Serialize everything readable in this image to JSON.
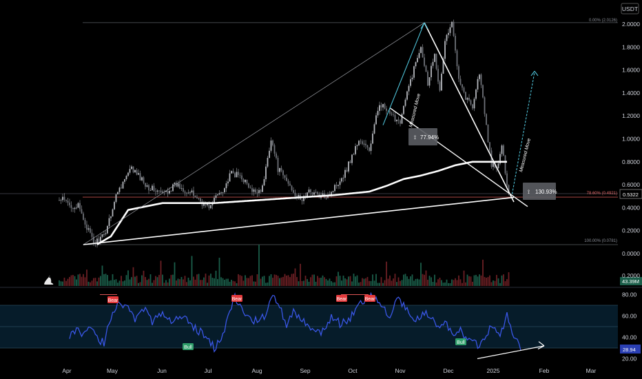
{
  "currency": "USDT",
  "chart_data": [
    {
      "type": "line",
      "subtype": "candlestick",
      "x_ticks": [
        "Apr",
        "May",
        "Jun",
        "Jul",
        "Aug",
        "Sep",
        "Oct",
        "Nov",
        "Dec",
        "2025",
        "Feb",
        "Mar"
      ],
      "y_ticks": [
        "2.0000",
        "1.8000",
        "1.6000",
        "1.4000",
        "1.2000",
        "1.0000",
        "0.8000",
        "0.6000",
        "0.4000",
        "0.2000",
        "0.0000"
      ],
      "ylim": [
        0.0,
        2.1
      ],
      "price_anchors": {
        "t": [
          0,
          2,
          6,
          11,
          20,
          26,
          34,
          42,
          52,
          60,
          68,
          74,
          80,
          84,
          88,
          91,
          96,
          100,
          106,
          112,
          118,
          123,
          127,
          134,
          140,
          146,
          152,
          158,
          166,
          174,
          180,
          186,
          192,
          198,
          204,
          210,
          214,
          218,
          221,
          224,
          228,
          232,
          236,
          240,
          244,
          248,
          251,
          254,
          257,
          261
        ],
        "price": [
          0.46,
          0.47,
          0.42,
          0.41,
          0.09,
          0.15,
          0.55,
          0.74,
          0.58,
          0.52,
          0.6,
          0.55,
          0.49,
          0.43,
          0.41,
          0.5,
          0.58,
          0.7,
          0.67,
          0.53,
          0.57,
          1.01,
          0.74,
          0.59,
          0.46,
          0.55,
          0.49,
          0.54,
          0.71,
          0.99,
          0.9,
          1.32,
          1.2,
          1.16,
          1.51,
          1.82,
          1.49,
          1.76,
          1.4,
          1.86,
          2.0,
          1.55,
          1.36,
          1.29,
          1.58,
          1.1,
          0.78,
          0.73,
          0.93,
          0.52
        ]
      },
      "last_price": "0.5322",
      "moving_average": {
        "t": [
          22,
          30,
          40,
          60,
          90,
          120,
          140,
          160,
          180,
          190,
          200,
          210,
          220,
          230,
          240,
          246,
          260
        ],
        "value": [
          0.08,
          0.15,
          0.38,
          0.44,
          0.44,
          0.47,
          0.49,
          0.51,
          0.54,
          0.59,
          0.65,
          0.68,
          0.72,
          0.77,
          0.8,
          0.8,
          0.8
        ]
      },
      "fibonacci": [
        {
          "label": "0.00% (2.0126)",
          "value": 2.0126
        },
        {
          "label": "78.60% (0.4921)",
          "value": 0.4921
        },
        {
          "label": "100.00% (0.0781)",
          "value": 0.0781
        }
      ],
      "annotations": [
        {
          "label": "77.94%",
          "kind": "measure"
        },
        {
          "label": "130.93%",
          "kind": "measure"
        },
        {
          "label": "Measured Move",
          "kind": "text"
        },
        {
          "label": "Measured Move",
          "kind": "text"
        }
      ]
    },
    {
      "type": "bar",
      "name": "Volume",
      "last_value": "43.39M",
      "y_ticks": [
        "0.2000"
      ]
    },
    {
      "type": "line",
      "name": "RSI",
      "y_ticks": [
        "80.00",
        "60.00",
        "40.00",
        "20.00"
      ],
      "ylim": [
        15,
        88
      ],
      "bands": [
        70,
        50,
        30
      ],
      "anchors": {
        "t": [
          0,
          4,
          8,
          12,
          16,
          20,
          24,
          28,
          32,
          38,
          44,
          48,
          54,
          60,
          66,
          72,
          78,
          84,
          88,
          92,
          96,
          100,
          106,
          110,
          114,
          118,
          122,
          126,
          130,
          134,
          140,
          146,
          152,
          158,
          164,
          170,
          176,
          182,
          186,
          190,
          194,
          198,
          202,
          206,
          210,
          214,
          218,
          222,
          226,
          230,
          234,
          238,
          242,
          246,
          250,
          254,
          258,
          262
        ],
        "value": [
          40,
          46,
          42,
          48,
          40,
          34,
          60,
          74,
          70,
          58,
          70,
          55,
          62,
          54,
          60,
          50,
          42,
          30,
          40,
          58,
          78,
          66,
          55,
          56,
          62,
          78,
          70,
          48,
          64,
          58,
          50,
          44,
          58,
          52,
          60,
          74,
          80,
          68,
          56,
          78,
          70,
          60,
          56,
          64,
          58,
          48,
          55,
          42,
          48,
          40,
          36,
          32,
          44,
          52,
          44,
          60,
          40,
          30
        ]
      },
      "tags": [
        {
          "label": "Bear",
          "kind": "bear"
        },
        {
          "label": "Bear",
          "kind": "bear"
        },
        {
          "label": "Bear",
          "kind": "bear"
        },
        {
          "label": "Bear",
          "kind": "bear"
        },
        {
          "label": "Bull",
          "kind": "bull"
        },
        {
          "label": "Bull",
          "kind": "bull"
        }
      ],
      "last_value": "28.94"
    }
  ]
}
